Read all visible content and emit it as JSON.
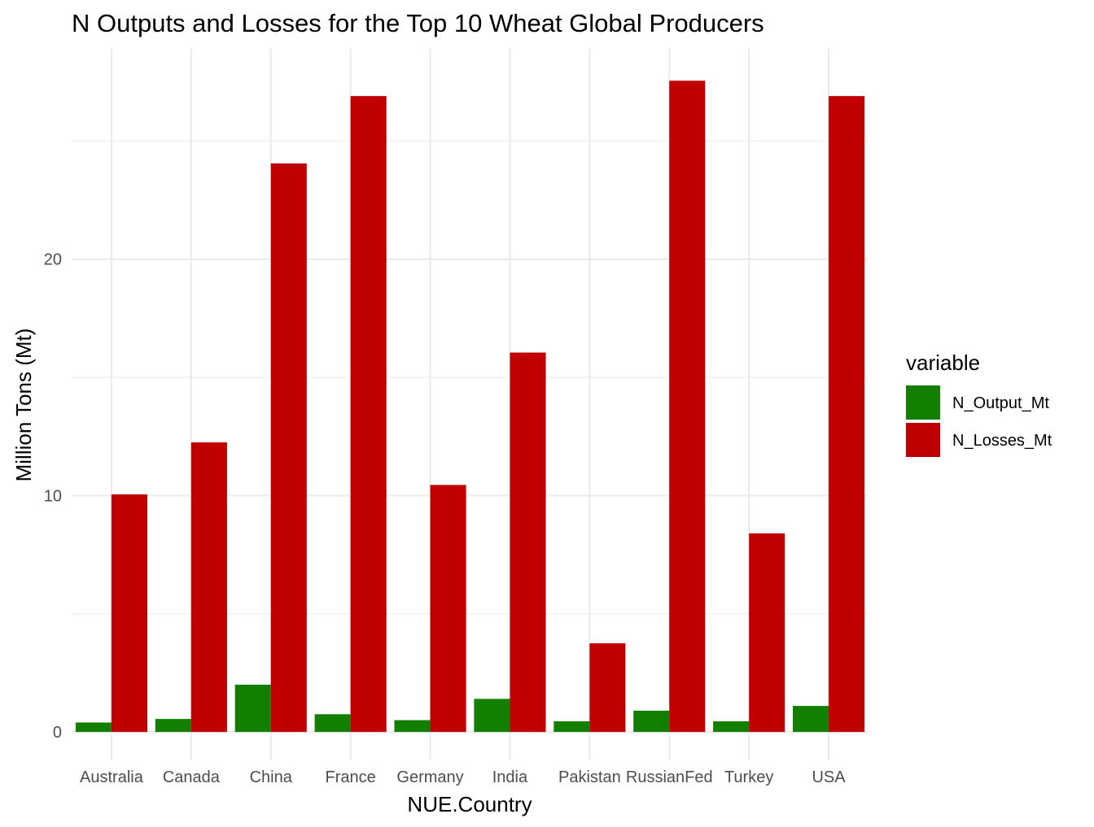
{
  "chart_data": {
    "type": "bar",
    "title": "N Outputs and Losses for the Top 10 Wheat Global Producers",
    "xlabel": "NUE.Country",
    "ylabel": "Million Tons (Mt)",
    "categories": [
      "Australia",
      "Canada",
      "China",
      "France",
      "Germany",
      "India",
      "Pakistan",
      "RussianFed",
      "Turkey",
      "USA"
    ],
    "series": [
      {
        "name": "N_Output_Mt",
        "color": "#137f00",
        "values": [
          0.4,
          0.55,
          2.0,
          0.75,
          0.5,
          1.4,
          0.45,
          0.9,
          0.45,
          1.1
        ]
      },
      {
        "name": "N_Losses_Mt",
        "color": "#c00000",
        "values": [
          10.05,
          12.25,
          24.05,
          26.9,
          10.45,
          16.05,
          3.75,
          27.55,
          8.4,
          26.9
        ]
      }
    ],
    "ylim": [
      -1.2,
      28.9
    ],
    "yticks": [
      0,
      10,
      20
    ],
    "grid": true,
    "legend": {
      "title": "variable",
      "position": "right"
    }
  }
}
